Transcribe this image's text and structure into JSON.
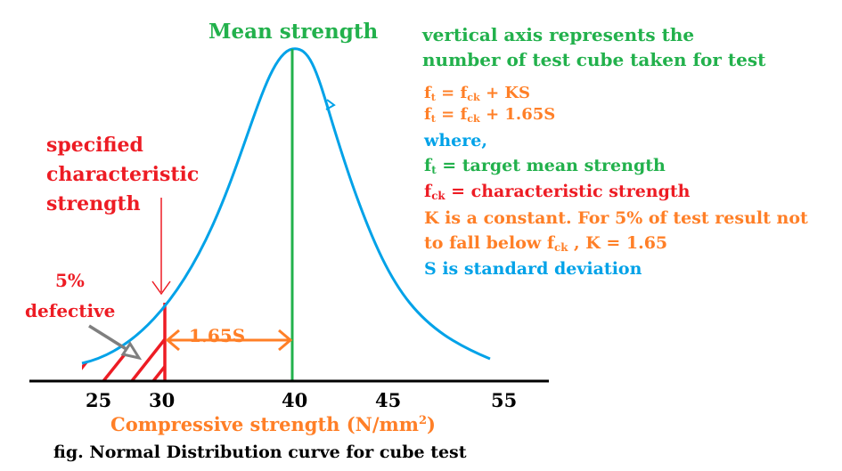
{
  "title": "Mean strength",
  "axis_note": {
    "line1": "vertical axis represents the",
    "line2": "number of test cube taken for test"
  },
  "formulas": {
    "f_sub_t": "t",
    "f_sub_ck": "ck",
    "eq1_rhs": " + KS",
    "eq2_rhs": " + 1.65S"
  },
  "legend": {
    "where": "where,",
    "ft_def": " = target mean strength",
    "fck_def": " = characteristic strength",
    "k_line1": "K is a constant. For 5% of test result not",
    "k_line2_start": "to fall below ",
    "k_line2_end": " , K = 1.65",
    "s_def": "S is standard deviation"
  },
  "specified": {
    "line1": "specified",
    "line2": "characteristic",
    "line3": "strength"
  },
  "defective": {
    "line1": "5%",
    "line2": "defective"
  },
  "span_label": "1.65S",
  "ticks": [
    "25",
    "30",
    "40",
    "45",
    "55"
  ],
  "xlabel_main": "Compressive strength (N/mm",
  "xlabel_sup": "2",
  "xlabel_end": ")",
  "caption": "fig. Normal Distribution curve for cube test",
  "colors": {
    "curve": "#00a2e8",
    "mean_line": "#22b14c",
    "hatch": "#ed1c24",
    "dimension": "#ff7f27",
    "axis": "#000000"
  }
}
